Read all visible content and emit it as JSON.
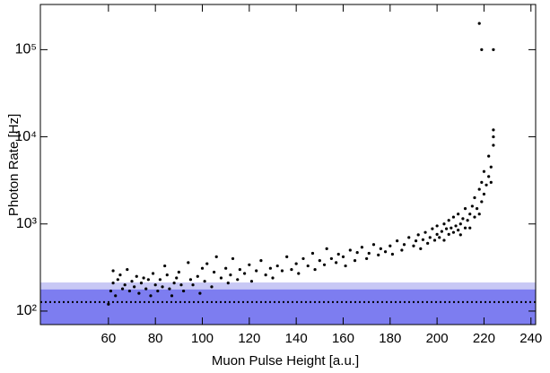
{
  "chart_data": {
    "type": "scatter",
    "x_label": "Muon Pulse Height [a.u.]",
    "y_label": "Photon Rate [Hz]",
    "xlim": [
      31,
      242
    ],
    "ylim": [
      70,
      330000
    ],
    "log_y": true,
    "xticks": [
      60,
      80,
      100,
      120,
      140,
      160,
      180,
      200,
      220,
      240
    ],
    "yticks": [
      {
        "value": 100,
        "label": "10²"
      },
      {
        "value": 1000,
        "label": "10³"
      },
      {
        "value": 10000,
        "label": "10⁴"
      },
      {
        "value": 100000,
        "label": "10⁵"
      }
    ],
    "bands": [
      {
        "low": 70,
        "high": 213,
        "color": "#c8c8f5"
      },
      {
        "low": 70,
        "high": 177,
        "color": "#7d7df0"
      }
    ],
    "hline": {
      "value": 127,
      "color": "#000000"
    },
    "series": [
      {
        "color": "#000000",
        "x": [
          60,
          61,
          62,
          62,
          63,
          64,
          65,
          66,
          67,
          68,
          69,
          70,
          71,
          72,
          73,
          74,
          75,
          76,
          77,
          78,
          79,
          80,
          81,
          82,
          83,
          84,
          85,
          86,
          87,
          88,
          89,
          90,
          91,
          92,
          94,
          95,
          96,
          98,
          99,
          100,
          101,
          102,
          104,
          105,
          106,
          108,
          110,
          111,
          112,
          113,
          115,
          116,
          118,
          120,
          121,
          123,
          125,
          127,
          129,
          130,
          132,
          134,
          136,
          138,
          140,
          141,
          143,
          145,
          147,
          148,
          150,
          152,
          153,
          155,
          157,
          158,
          160,
          161,
          163,
          165,
          166,
          168,
          170,
          171,
          173,
          175,
          176,
          178,
          180,
          181,
          183,
          185,
          186,
          188,
          190,
          191,
          192,
          193,
          194,
          195,
          196,
          197,
          198,
          199,
          200,
          200,
          201,
          202,
          203,
          203,
          204,
          205,
          205,
          206,
          207,
          207,
          208,
          209,
          209,
          210,
          210,
          211,
          212,
          212,
          213,
          214,
          214,
          215,
          216,
          216,
          217,
          218,
          218,
          219,
          219,
          220,
          220,
          221,
          222,
          222,
          223,
          223,
          224,
          224,
          224,
          218,
          219,
          224
        ],
        "values": [
          120,
          170,
          290,
          210,
          150,
          230,
          260,
          180,
          200,
          300,
          170,
          220,
          190,
          250,
          160,
          210,
          240,
          180,
          230,
          150,
          270,
          200,
          170,
          230,
          190,
          330,
          260,
          180,
          150,
          210,
          240,
          280,
          200,
          170,
          360,
          230,
          200,
          250,
          160,
          310,
          220,
          350,
          190,
          280,
          420,
          240,
          310,
          210,
          260,
          400,
          230,
          300,
          270,
          340,
          220,
          290,
          380,
          260,
          310,
          240,
          330,
          290,
          420,
          300,
          350,
          270,
          400,
          330,
          460,
          300,
          380,
          340,
          520,
          400,
          360,
          450,
          420,
          330,
          500,
          380,
          470,
          540,
          400,
          460,
          580,
          440,
          520,
          480,
          560,
          450,
          640,
          500,
          580,
          700,
          560,
          640,
          750,
          520,
          660,
          800,
          600,
          700,
          880,
          650,
          760,
          950,
          700,
          820,
          1000,
          650,
          880,
          760,
          1100,
          900,
          800,
          1200,
          950,
          850,
          1300,
          1000,
          750,
          1150,
          900,
          1500,
          1100,
          1300,
          900,
          1600,
          1200,
          2000,
          1500,
          2500,
          1300,
          3000,
          1800,
          2200,
          4000,
          2800,
          3500,
          6000,
          4500,
          3000,
          10000,
          12000,
          8000,
          200000,
          100000,
          100000
        ]
      }
    ]
  }
}
